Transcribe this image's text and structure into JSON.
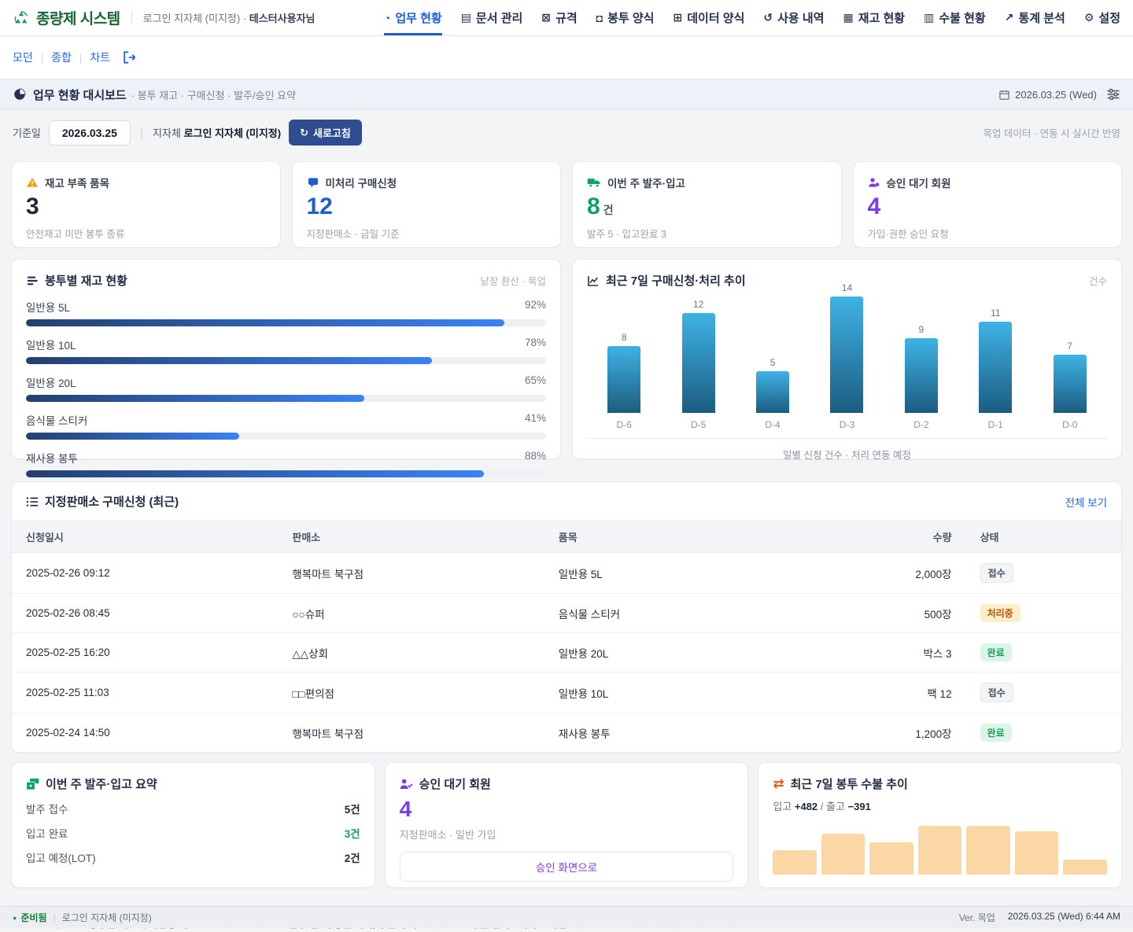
{
  "header": {
    "brand": "종량제 시스템",
    "login_context": "로그인 지자체 (미지정) ·",
    "user_name": "테스터사용자님",
    "nav_items": [
      {
        "label": "업무 현황",
        "icon": "◔",
        "icon_name": "dashboard-icon",
        "active": true
      },
      {
        "label": "문서 관리",
        "icon": "▤",
        "icon_name": "document-icon",
        "active": false
      },
      {
        "label": "규격",
        "icon": "⊠",
        "icon_name": "spec-icon",
        "active": false
      },
      {
        "label": "봉투 양식",
        "icon": "◘",
        "icon_name": "bag-icon",
        "active": false
      },
      {
        "label": "데이터 양식",
        "icon": "⊞",
        "icon_name": "data-form-icon",
        "active": false
      },
      {
        "label": "사용 내역",
        "icon": "↺",
        "icon_name": "history-icon",
        "active": false
      },
      {
        "label": "재고 현황",
        "icon": "▦",
        "icon_name": "inventory-icon",
        "active": false
      },
      {
        "label": "수불 현황",
        "icon": "▥",
        "icon_name": "ledger-icon",
        "active": false
      },
      {
        "label": "통계 분석",
        "icon": "↗",
        "icon_name": "stats-icon",
        "active": false
      },
      {
        "label": "설정",
        "icon": "⚙",
        "icon_name": "settings-icon",
        "active": false
      }
    ]
  },
  "subnav": {
    "links": [
      "모던",
      "종합",
      "차트"
    ]
  },
  "titlebar": {
    "title": "업무 현황 대시보드",
    "subtitle": "· 봉투 재고 · 구매신청 · 발주/승인 요약",
    "date": "2026.03.25 (Wed)"
  },
  "filterbar": {
    "base_date_label": "기준일",
    "base_date_value": "2026.03.25",
    "org_label": "지자체",
    "org_value": "로그인 지자체 (미지정)",
    "refresh_icon": "↻",
    "refresh_label": "새로고침",
    "note": "목업 데이터 · 연동 시 실시간 반영"
  },
  "kpis": [
    {
      "title": "재고 부족 품목",
      "value": "3",
      "suffix": "",
      "sub": "안전재고 미만 봉투 종류",
      "color": "#1f2937"
    },
    {
      "title": "미처리 구매신청",
      "value": "12",
      "suffix": "",
      "sub": "지정판매소 · 금일 기준",
      "color": "#1d5fd1"
    },
    {
      "title": "이번 주 발주·입고",
      "value": "8",
      "suffix": "건",
      "sub": "발주 5 · 입고완료 3",
      "color": "#0e9f6e"
    },
    {
      "title": "승인 대기 회원",
      "value": "4",
      "suffix": "",
      "sub": "가입·권한 승인 요청",
      "color": "#7c3aed"
    }
  ],
  "stock_section": {
    "title": "봉투별 재고 현황",
    "note": "낱장 환산 · 목업",
    "bars": [
      {
        "label": "일반용 5L",
        "pct": 92
      },
      {
        "label": "일반용 10L",
        "pct": 78
      },
      {
        "label": "일반용 20L",
        "pct": 65
      },
      {
        "label": "음식물 스티커",
        "pct": 41
      },
      {
        "label": "재사용 봉투",
        "pct": 88
      }
    ]
  },
  "trend_section": {
    "title": "최근 7일 구매신청·처리 추이",
    "note": "건수",
    "caption": "일별 신청 건수 · 처리 연동 예정",
    "max": 14,
    "bars": [
      {
        "label": "D-6",
        "value": 8
      },
      {
        "label": "D-5",
        "value": 12
      },
      {
        "label": "D-4",
        "value": 5
      },
      {
        "label": "D-3",
        "value": 14
      },
      {
        "label": "D-2",
        "value": 9
      },
      {
        "label": "D-1",
        "value": 11
      },
      {
        "label": "D-0",
        "value": 7
      }
    ]
  },
  "requests_table": {
    "title": "지정판매소 구매신청 (최근)",
    "view_all": "전체 보기",
    "columns": [
      "신청일시",
      "판매소",
      "품목",
      "수량",
      "상태"
    ],
    "rows": [
      {
        "datetime": "2025-02-26 09:12",
        "store": "행복마트 북구점",
        "item": "일반용 5L",
        "qty": "2,000장",
        "status": "접수",
        "status_type": "received"
      },
      {
        "datetime": "2025-02-26 08:45",
        "store": "○○슈퍼",
        "item": "음식물 스티커",
        "qty": "500장",
        "status": "처리중",
        "status_type": "processing"
      },
      {
        "datetime": "2025-02-25 16:20",
        "store": "△△상회",
        "item": "일반용 20L",
        "qty": "박스 3",
        "status": "완료",
        "status_type": "done"
      },
      {
        "datetime": "2025-02-25 11:03",
        "store": "□□편의점",
        "item": "일반용 10L",
        "qty": "팩 12",
        "status": "접수",
        "status_type": "received"
      },
      {
        "datetime": "2025-02-24 14:50",
        "store": "행복마트 북구점",
        "item": "재사용 봉투",
        "qty": "1,200장",
        "status": "완료",
        "status_type": "done"
      }
    ]
  },
  "order_summary": {
    "title": "이번 주 발주·입고 요약",
    "rows": [
      {
        "label": "발주 접수",
        "value": "5건",
        "highlight": false
      },
      {
        "label": "입고 완료",
        "value": "3건",
        "highlight": true
      },
      {
        "label": "입고 예정(LOT)",
        "value": "2건",
        "highlight": false
      }
    ]
  },
  "approval": {
    "title": "승인 대기 회원",
    "value": "4",
    "sub": "지정판매소 · 일반 가입",
    "button_label": "승인 화면으로"
  },
  "flow": {
    "title": "최근 7일 봉투 수불 추이",
    "icon": "⇄",
    "in_label": "입고",
    "in_value": "+482",
    "divider": "/",
    "out_label": "출고",
    "out_value": "−391",
    "bar_color": "#fbd7a5",
    "bars_rel": [
      50,
      84,
      66,
      100,
      100,
      88,
      31
    ]
  },
  "footnote": {
    "segments": [
      {
        "text": "차장님 요청 반영: ",
        "bold": false
      },
      {
        "text": "봉투별 재고·구매신청 리스트",
        "bold": true
      },
      {
        "text": "·그래프 / 추가 시안: ",
        "bold": false
      },
      {
        "text": "발주·입고, 승인 대기, 수불 추이",
        "bold": true
      },
      {
        "text": ". 레이아웃은 ",
        "bold": false
      },
      {
        "text": "수불 엔터프라이즈 화면",
        "bold": true
      },
      {
        "text": "과 동일한 상단 메뉴·제목바 스타일입니다.",
        "bold": false
      }
    ]
  },
  "statusbar": {
    "status": "준비됨",
    "context": "로그인 지자체 (미지정)",
    "version": "Ver. 목업",
    "datetime": "2026.03.25 (Wed) 6:44 AM"
  },
  "colors": {
    "brand_green": "#166534",
    "accent_blue": "#1d5ed8",
    "kpi_blue": "#1d5fd1",
    "kpi_green": "#0e9f6e",
    "kpi_purple": "#7c3aed",
    "warning_amber": "#f59e0b",
    "stock_gradient": [
      "#24406f",
      "#3b82f6"
    ],
    "trend_gradient": [
      "#3eb3e6",
      "#1c5c80"
    ],
    "spark_peach": "#fbd7a5"
  },
  "chart_data": [
    {
      "type": "bar",
      "orientation": "horizontal",
      "title": "봉투별 재고 현황",
      "note": "낱장 환산 · 목업",
      "categories": [
        "일반용 5L",
        "일반용 10L",
        "일반용 20L",
        "음식물 스티커",
        "재사용 봉투"
      ],
      "values": [
        92,
        78,
        65,
        41,
        88
      ],
      "unit": "%",
      "xlim": [
        0,
        100
      ]
    },
    {
      "type": "bar",
      "orientation": "vertical",
      "title": "최근 7일 구매신청·처리 추이",
      "ylabel": "건수",
      "caption": "일별 신청 건수 · 처리 연동 예정",
      "categories": [
        "D-6",
        "D-5",
        "D-4",
        "D-3",
        "D-2",
        "D-1",
        "D-0"
      ],
      "values": [
        8,
        12,
        5,
        14,
        9,
        11,
        7
      ],
      "ylim": [
        0,
        14
      ],
      "data_labels": true,
      "grid": false
    },
    {
      "type": "bar",
      "orientation": "vertical",
      "title": "최근 7일 봉투 수불 추이",
      "subtitle": "입고 +482 / 출고 −391",
      "categories": [
        "1",
        "2",
        "3",
        "4",
        "5",
        "6",
        "7"
      ],
      "values_relative_pct": [
        50,
        84,
        66,
        100,
        100,
        88,
        31
      ],
      "in_total": 482,
      "out_total": -391
    }
  ]
}
